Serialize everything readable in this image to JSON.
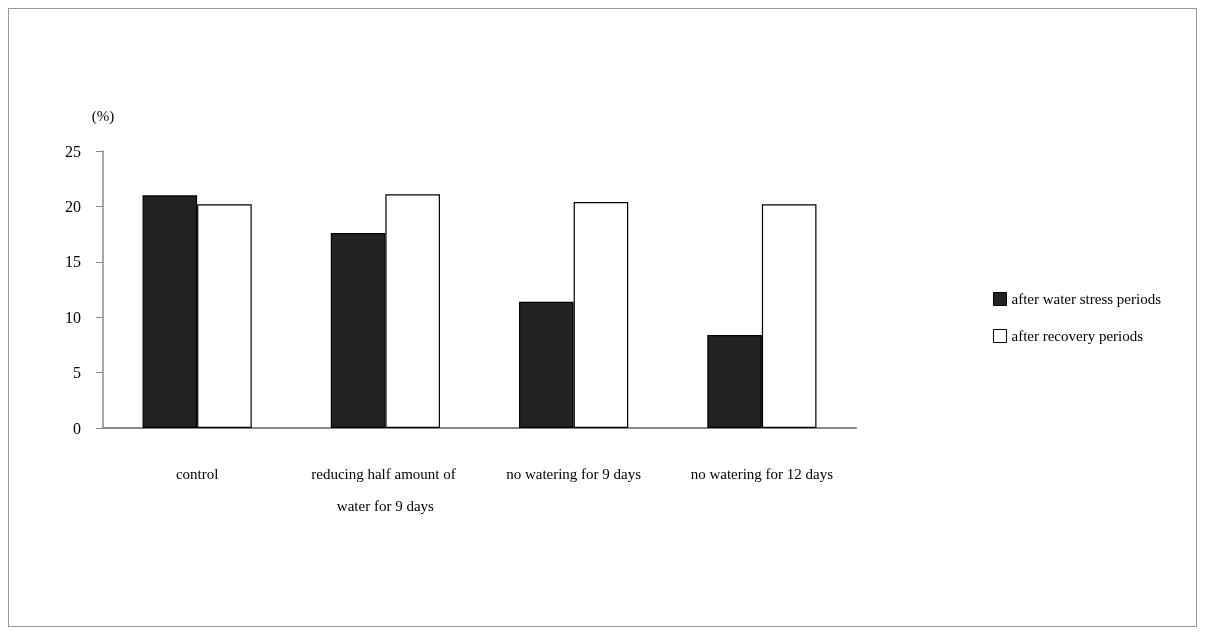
{
  "chart_data": {
    "type": "bar",
    "ylabel": "(%)",
    "categories": [
      "control",
      "reducing half amount of water for 9 days",
      "no watering for 9 days",
      "no watering for 12 days"
    ],
    "series": [
      {
        "name": "after water stress periods",
        "color": "#222222",
        "values": [
          21.0,
          17.6,
          11.4,
          8.4
        ]
      },
      {
        "name": "after recovery periods",
        "color": "#ffffff",
        "values": [
          20.2,
          21.1,
          20.4,
          20.2
        ]
      }
    ],
    "ylim": [
      0,
      25
    ],
    "yticks": [
      0,
      5,
      10,
      15,
      20,
      25
    ],
    "grid": false,
    "legend": "right"
  }
}
